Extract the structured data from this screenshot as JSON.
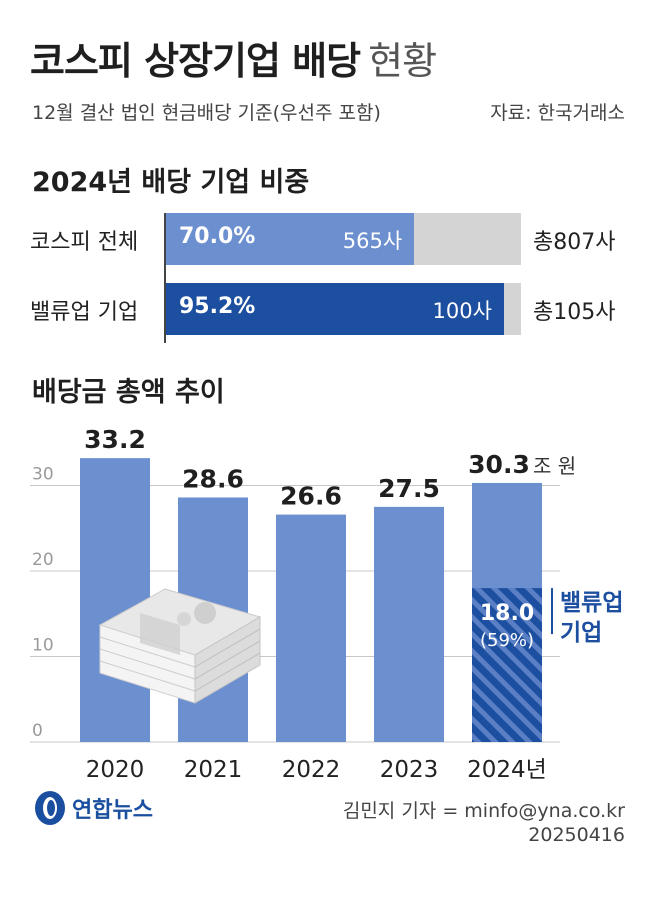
{
  "title": {
    "main": "코스피 상장기업 배당",
    "suffix": "현황"
  },
  "subtitle": "12월 결산 법인 현금배당 기준(우선주 포함)",
  "source": "자료: 한국거래소",
  "ratio_section": {
    "heading": "2024년 배당 기업 비중",
    "rows": [
      {
        "label": "코스피 전체",
        "pct_text": "70.0%",
        "share": 0.7,
        "count": "565사",
        "total": "총807사",
        "fill_color": "#6c8fcf"
      },
      {
        "label": "밸류업 기업",
        "pct_text": "95.2%",
        "share": 0.952,
        "count": "100사",
        "total": "총105사",
        "fill_color": "#1c4fa0"
      }
    ]
  },
  "trend_section": {
    "heading": "배당금 총액 추이"
  },
  "chart_data": {
    "type": "bar",
    "categories": [
      "2020",
      "2021",
      "2022",
      "2023",
      "2024년"
    ],
    "values": [
      33.2,
      28.6,
      26.6,
      27.5,
      30.3
    ],
    "value_labels": [
      "33.2",
      "28.6",
      "26.6",
      "27.5",
      "30.3"
    ],
    "unit": "조 원",
    "ylim": [
      0,
      35
    ],
    "yticks": [
      0,
      10,
      20,
      30
    ],
    "grid": true,
    "bar_color": "#6c8fcf",
    "highlight": {
      "category": "2024년",
      "value": 18.0,
      "value_label": "18.0",
      "share_label": "(59%)",
      "name_lines": [
        "밸류업",
        "기업"
      ],
      "color": "#1c4fa0"
    }
  },
  "footer": {
    "logo_text": "연합뉴스",
    "byline": "김민지 기자 = minfo@yna.co.kr",
    "date": "20250416"
  }
}
